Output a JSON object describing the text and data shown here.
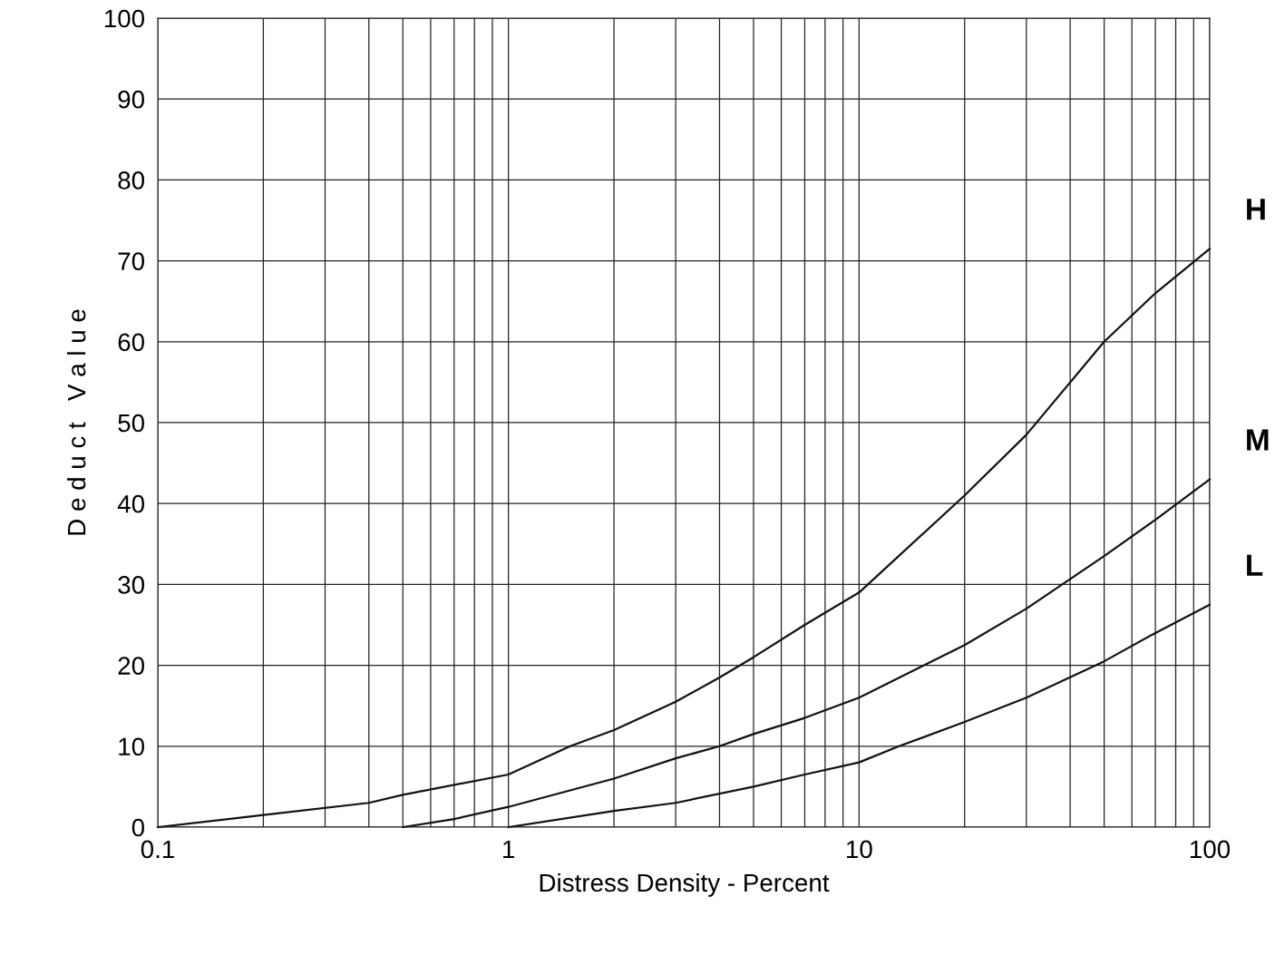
{
  "chart_data": {
    "type": "line",
    "xlabel": "Distress Density - Percent",
    "ylabel": "D e d u c t   V a l u e",
    "log": "x",
    "grid": true,
    "xlim": [
      0.1,
      100
    ],
    "ylim": [
      0,
      100
    ],
    "xticks": [
      0.1,
      1,
      10,
      100
    ],
    "yticks": [
      0,
      10,
      20,
      30,
      40,
      50,
      60,
      70,
      80,
      90,
      100
    ],
    "legend": false,
    "series": [
      {
        "name": "H",
        "color": "#111111",
        "x": [
          0.1,
          0.2,
          0.4,
          0.5,
          1,
          1.5,
          2,
          3,
          4,
          5,
          7,
          10,
          20,
          30,
          50,
          70,
          100
        ],
        "values": [
          0,
          1.5,
          3,
          4,
          6.5,
          10,
          12,
          15.5,
          18.5,
          21,
          25,
          29,
          41,
          48.5,
          60,
          66,
          71.5
        ]
      },
      {
        "name": "M",
        "color": "#111111",
        "x": [
          0.5,
          0.7,
          1,
          2,
          3,
          4,
          5,
          7,
          10,
          20,
          30,
          50,
          70,
          100
        ],
        "values": [
          0,
          1,
          2.5,
          6,
          8.5,
          10,
          11.5,
          13.5,
          16,
          22.5,
          27,
          33.5,
          38,
          43
        ]
      },
      {
        "name": "L",
        "color": "#111111",
        "x": [
          1,
          2,
          3,
          5,
          7,
          10,
          13,
          20,
          30,
          50,
          70,
          100
        ],
        "values": [
          0,
          2,
          3,
          5,
          6.5,
          8,
          10,
          13,
          16,
          20.5,
          24,
          27.5
        ]
      }
    ]
  }
}
